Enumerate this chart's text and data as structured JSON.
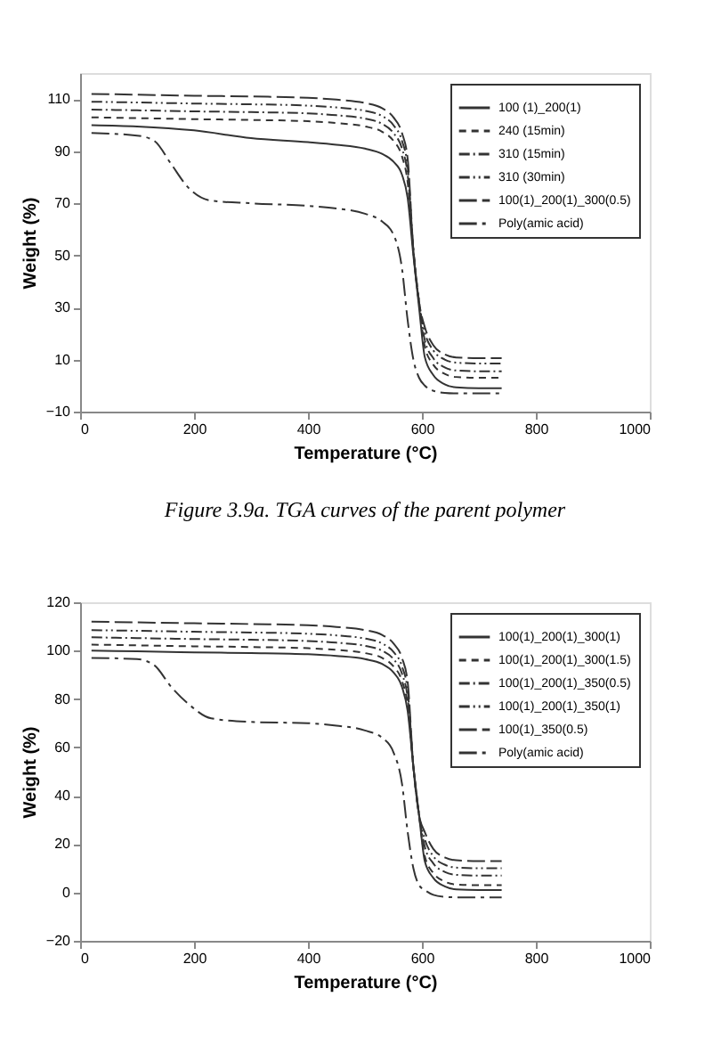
{
  "chart_data": [
    {
      "type": "line",
      "xlabel": "Temperature (°C)",
      "ylabel": "Weight (%)",
      "xlim": [
        0,
        1000
      ],
      "xticks": [
        0,
        200,
        400,
        600,
        800,
        1000
      ],
      "ylim": [
        -10,
        120
      ],
      "yticks": [
        -10,
        10,
        30,
        50,
        70,
        90,
        110
      ],
      "grid": false,
      "legend": "top right",
      "marker": "none",
      "annotations": [
        "Figure 3.9a. TGA curves of the parent polymer"
      ],
      "x": [
        20,
        100,
        200,
        300,
        400,
        450,
        500,
        530,
        550,
        565,
        575,
        585,
        595,
        605,
        620,
        640,
        660,
        700,
        740
      ],
      "series": [
        {
          "name": "100 (1)_200(1)",
          "color": "#333333",
          "line_style": "solid",
          "values": [
            100,
            99.5,
            98,
            95,
            93.5,
            92.5,
            91,
            89,
            86,
            81,
            72,
            50,
            30,
            11,
            4,
            0.5,
            -0.7,
            -1,
            -1
          ]
        },
        {
          "name": "240 (15min)",
          "color": "#333333",
          "line_style": "dashed",
          "values": [
            103,
            102.7,
            102.3,
            102,
            101.5,
            100.8,
            99.5,
            97.5,
            94,
            88,
            78,
            52,
            32,
            15,
            8,
            4.5,
            3.3,
            3,
            3
          ]
        },
        {
          "name": "310 (15min)",
          "color": "#333333",
          "line_style": "dashdot",
          "values": [
            106,
            105.7,
            105.3,
            105,
            104.5,
            103.8,
            102.5,
            100.5,
            97,
            91,
            81,
            52,
            32,
            17.5,
            10.5,
            7,
            5.8,
            5.5,
            5.5
          ]
        },
        {
          "name": "310 (30min)",
          "color": "#333333",
          "line_style": "dashdotdot",
          "values": [
            109,
            108.7,
            108.3,
            108,
            107.5,
            106.8,
            105.5,
            103.5,
            100,
            94,
            84,
            52,
            32,
            20.5,
            13.5,
            10,
            8.8,
            8.5,
            8.5
          ]
        },
        {
          "name": "100(1)_200(1)_300(0.5)",
          "color": "#333333",
          "line_style": "longdash",
          "values": [
            112,
            111.7,
            111.3,
            111,
            110.5,
            109.8,
            108.5,
            106.5,
            103,
            97,
            87,
            52,
            32,
            22.5,
            15.5,
            12,
            10.8,
            10.5,
            10.5
          ]
        },
        {
          "name": "Poly(amic acid)",
          "color": "#333333",
          "line_style": "longdashdot",
          "x": [
            20,
            100,
            130,
            160,
            190,
            230,
            300,
            400,
            450,
            500,
            530,
            550,
            565,
            575,
            585,
            595,
            605,
            620,
            640,
            660,
            700,
            740
          ],
          "values": [
            97,
            96,
            94,
            85,
            76,
            71,
            70,
            69,
            68,
            66,
            63,
            58,
            45,
            25,
            10,
            3,
            0,
            -2,
            -2.8,
            -3,
            -3,
            -3
          ]
        }
      ]
    },
    {
      "type": "line",
      "xlabel": "Temperature (°C)",
      "ylabel": "Weight (%)",
      "xlim": [
        0,
        1000
      ],
      "xticks": [
        0,
        200,
        400,
        600,
        800,
        1000
      ],
      "ylim": [
        -20,
        120
      ],
      "yticks": [
        -20,
        0,
        20,
        40,
        60,
        80,
        100,
        120
      ],
      "grid": false,
      "legend": "top right",
      "marker": "none",
      "x": [
        20,
        100,
        200,
        300,
        400,
        450,
        500,
        530,
        550,
        565,
        575,
        585,
        595,
        605,
        620,
        640,
        660,
        700,
        740
      ],
      "series": [
        {
          "name": "100(1)_200(1)_300(1)",
          "color": "#333333",
          "line_style": "solid",
          "values": [
            100,
            99.7,
            99.3,
            99,
            98.5,
            97.8,
            96.5,
            94.5,
            91,
            85,
            75,
            52,
            32,
            13,
            6,
            2.5,
            1.3,
            1,
            1
          ]
        },
        {
          "name": "100(1)_200(1)_300(1.5)",
          "color": "#333333",
          "line_style": "dashed",
          "values": [
            102.5,
            102.2,
            101.8,
            101.5,
            101,
            100.3,
            99,
            97,
            93.5,
            87.5,
            77.5,
            52,
            32,
            15,
            8,
            4.5,
            3.3,
            3,
            3
          ]
        },
        {
          "name": "100(1)_200(1)_350(0.5)",
          "color": "#333333",
          "line_style": "dashdot",
          "values": [
            105.5,
            105.2,
            104.8,
            104.5,
            104,
            103.3,
            102,
            100,
            96.5,
            90.5,
            80.5,
            52,
            32,
            19,
            12,
            8.5,
            7.3,
            7,
            7
          ]
        },
        {
          "name": "100(1)_200(1)_350(1)",
          "color": "#333333",
          "line_style": "dashdotdot",
          "values": [
            108.5,
            108.2,
            107.8,
            107.5,
            107,
            106.3,
            105,
            103,
            99.5,
            93.5,
            83.5,
            52,
            32,
            22,
            15,
            11.5,
            10.3,
            10,
            10
          ]
        },
        {
          "name": "100(1)_350(0.5)",
          "color": "#333333",
          "line_style": "longdash",
          "values": [
            112,
            111.7,
            111.3,
            111,
            110.5,
            109.8,
            108.5,
            106.5,
            103,
            97,
            87,
            52,
            32,
            25,
            18,
            14.5,
            13.3,
            13,
            13
          ]
        },
        {
          "name": "Poly(amic acid)",
          "color": "#333333",
          "line_style": "longdashdot",
          "x": [
            20,
            100,
            130,
            160,
            190,
            230,
            300,
            400,
            450,
            500,
            530,
            550,
            565,
            575,
            585,
            595,
            605,
            620,
            640,
            660,
            700,
            740
          ],
          "values": [
            97,
            96.5,
            94,
            85,
            78,
            72,
            70.5,
            70,
            69,
            67,
            64,
            58,
            45,
            25,
            10,
            3,
            1,
            -1,
            -1.8,
            -2,
            -2,
            -2
          ]
        }
      ]
    }
  ]
}
